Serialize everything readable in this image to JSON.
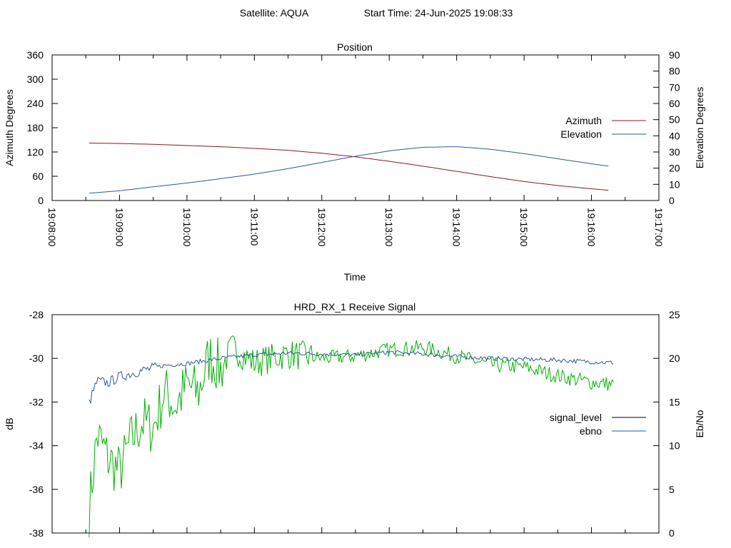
{
  "header": {
    "satellite_label": "Satellite: AQUA",
    "start_time_label": "Start Time: 24-Jun-2025 19:08:33"
  },
  "chart_data": [
    {
      "type": "line",
      "title": "Position",
      "xlabel": "Time",
      "ylabel": "Azimuth Degrees",
      "y2label": "Elevation Degrees",
      "x_ticks": [
        "19:08:00",
        "19:09:00",
        "19:10:00",
        "19:11:00",
        "19:12:00",
        "19:13:00",
        "19:14:00",
        "19:15:00",
        "19:16:00",
        "19:17:00"
      ],
      "xlim": [
        "19:08:00",
        "19:17:00"
      ],
      "ylim": [
        0,
        360
      ],
      "y_ticks": [
        "0",
        "60",
        "120",
        "180",
        "240",
        "300",
        "360"
      ],
      "y2lim": [
        0,
        90
      ],
      "y2_ticks": [
        "0",
        "10",
        "20",
        "30",
        "40",
        "50",
        "60",
        "70",
        "80",
        "90"
      ],
      "legend_position": "right",
      "grid": false,
      "series": [
        {
          "name": "Azimuth",
          "axis": "y",
          "color": "#8b1a1a",
          "x": [
            "19:08:33",
            "19:09:00",
            "19:09:30",
            "19:10:00",
            "19:10:30",
            "19:11:00",
            "19:11:30",
            "19:12:00",
            "19:12:30",
            "19:13:00",
            "19:13:30",
            "19:14:00",
            "19:14:30",
            "19:15:00",
            "19:15:30",
            "19:16:00",
            "19:16:20"
          ],
          "values": [
            142,
            141,
            139,
            136,
            133,
            129,
            124,
            117,
            108,
            97,
            85,
            72,
            59,
            47,
            37,
            29,
            24
          ]
        },
        {
          "name": "Elevation",
          "axis": "y2",
          "color": "#2a5a9a",
          "x": [
            "19:08:33",
            "19:09:00",
            "19:09:30",
            "19:10:00",
            "19:10:30",
            "19:11:00",
            "19:11:30",
            "19:12:00",
            "19:12:30",
            "19:13:00",
            "19:13:30",
            "19:14:00",
            "19:14:30",
            "19:15:00",
            "19:15:30",
            "19:16:00",
            "19:16:20"
          ],
          "values": [
            4.5,
            6,
            8.5,
            10.8,
            13.5,
            16.3,
            19.7,
            23.5,
            27.4,
            30.7,
            32.9,
            33.3,
            31.7,
            29,
            25.8,
            22.7,
            20.8
          ]
        }
      ]
    },
    {
      "type": "line",
      "title": "HRD_RX_1 Receive Signal",
      "xlabel": "",
      "ylabel": "dB",
      "y2label": "Eb/No",
      "xlim": [
        "19:08:00",
        "19:17:00"
      ],
      "ylim": [
        -38,
        -28
      ],
      "y_ticks": [
        "-38",
        "-36",
        "-34",
        "-32",
        "-30",
        "-28"
      ],
      "y2lim": [
        0,
        25
      ],
      "y2_ticks": [
        "0",
        "5",
        "10",
        "15",
        "20",
        "25"
      ],
      "legend_position": "right",
      "grid": false,
      "series": [
        {
          "name": "signal_level",
          "axis": "y",
          "legend_color": "#000000",
          "color": "#00b000",
          "x": [
            "19:08:33",
            "19:08:40",
            "19:08:50",
            "19:09:00",
            "19:09:10",
            "19:09:20",
            "19:09:30",
            "19:09:40",
            "19:09:50",
            "19:10:00",
            "19:10:10",
            "19:10:20",
            "19:10:30",
            "19:10:40",
            "19:11:00",
            "19:11:30",
            "19:12:00",
            "19:12:30",
            "19:13:00",
            "19:13:30",
            "19:14:00",
            "19:14:30",
            "19:15:00",
            "19:15:30",
            "19:16:00",
            "19:16:20"
          ],
          "values": [
            -36.9,
            -33.5,
            -34.6,
            -35.2,
            -33.8,
            -32.9,
            -33.2,
            -31.5,
            -32.2,
            -31.2,
            -31.6,
            -29.9,
            -30.5,
            -29.5,
            -30.2,
            -29.8,
            -30.0,
            -29.9,
            -29.6,
            -29.5,
            -29.9,
            -30.3,
            -30.4,
            -30.8,
            -31.1,
            -31.2
          ]
        },
        {
          "name": "ebno",
          "axis": "y2",
          "color": "#2a5a9a",
          "x": [
            "19:08:33",
            "19:08:40",
            "19:08:50",
            "19:09:00",
            "19:09:20",
            "19:09:40",
            "19:10:00",
            "19:10:30",
            "19:11:00",
            "19:11:30",
            "19:12:00",
            "19:12:30",
            "19:13:00",
            "19:13:30",
            "19:14:00",
            "19:14:30",
            "19:15:00",
            "19:15:30",
            "19:16:00",
            "19:16:20"
          ],
          "values": [
            14.9,
            17.4,
            17.2,
            17.9,
            18.6,
            19.2,
            19.4,
            20.0,
            20.4,
            20.6,
            20.5,
            20.4,
            20.7,
            20.5,
            20.2,
            20.0,
            19.9,
            19.8,
            19.6,
            19.5
          ]
        }
      ]
    }
  ]
}
